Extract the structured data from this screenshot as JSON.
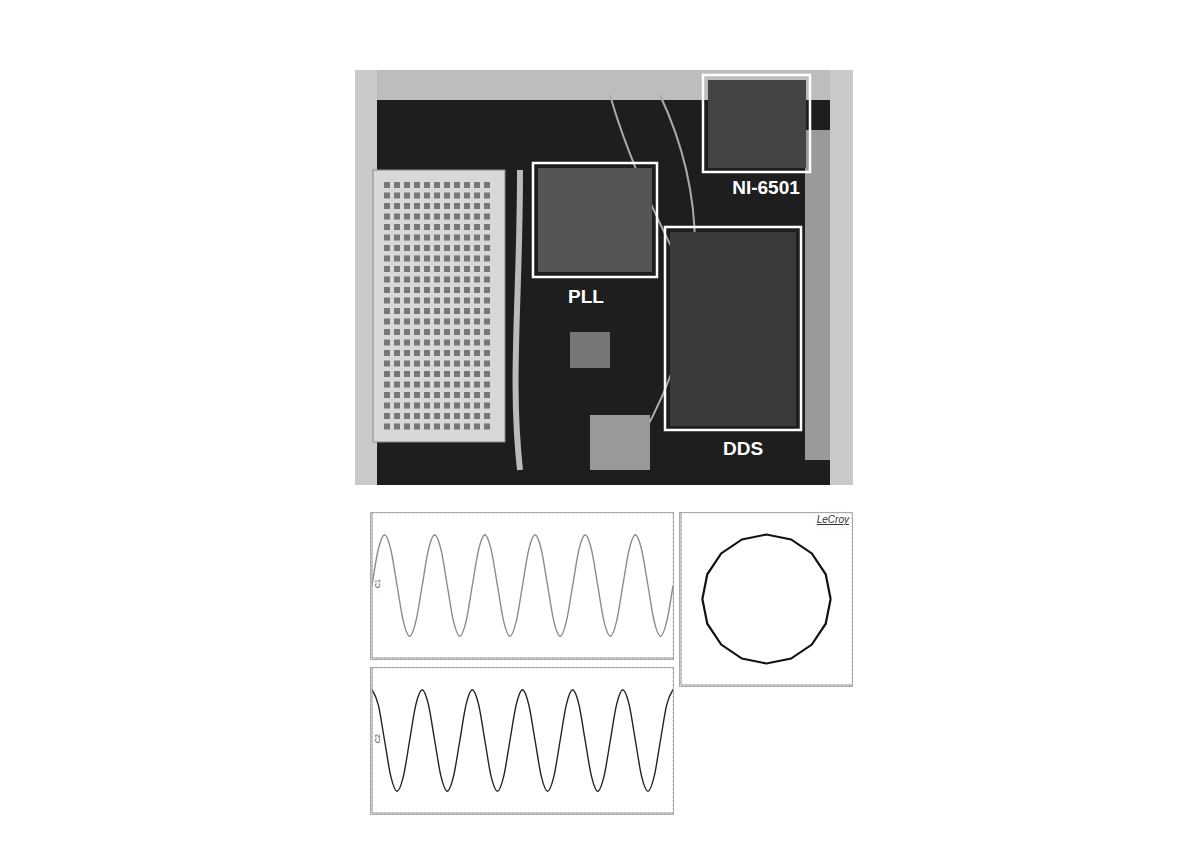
{
  "photo": {
    "labels": [
      "PLL",
      "NI-6501",
      "DDS"
    ]
  },
  "chart_data": [
    {
      "type": "line",
      "x": [
        0,
        0.083,
        0.167,
        0.25,
        0.333,
        0.417,
        0.5,
        0.583,
        0.667,
        0.75,
        0.833,
        0.917,
        1,
        1.083,
        1.167,
        1.25,
        1.333,
        1.417,
        1.5,
        1.583,
        1.667,
        1.75,
        1.833,
        1.917,
        2,
        2.083,
        2.167,
        2.25,
        2.333,
        2.417,
        2.5,
        2.583,
        2.667,
        2.75,
        2.833,
        2.917,
        3,
        3.083,
        3.167,
        3.25,
        3.333,
        3.417,
        3.5,
        3.583,
        3.667,
        3.75,
        3.833,
        3.917,
        4
      ],
      "series": [
        {
          "name": "C1",
          "color": "#8a8a8a",
          "values": [
            0,
            0.99,
            1.4,
            0.99,
            0,
            -0.99,
            -1.4,
            -0.99,
            0,
            0.99,
            1.4,
            0.99,
            0,
            -0.99,
            -1.4,
            -0.99,
            0,
            0.99,
            1.4,
            0.99,
            0,
            -0.99,
            -1.4,
            -0.99,
            0,
            0.99,
            1.4,
            0.99,
            0,
            -0.99,
            -1.4,
            -0.99,
            0,
            0.99,
            1.4,
            0.99,
            0,
            -0.99,
            -1.4,
            -0.99,
            0,
            0.99,
            1.4,
            0.99,
            0,
            -0.99,
            -1.4,
            -0.99,
            0
          ]
        }
      ],
      "xlim": [
        0,
        4
      ],
      "xticks": [
        0,
        0.5,
        1,
        1.5,
        2,
        2.5,
        3,
        3.5,
        4
      ],
      "ylim": [
        -2,
        2
      ],
      "yticks": [
        -2,
        -1,
        0,
        1,
        2
      ],
      "grid": true,
      "tick_labels": false,
      "marker": "none"
    },
    {
      "type": "line",
      "x": [
        0,
        0.083,
        0.167,
        0.25,
        0.333,
        0.417,
        0.5,
        0.583,
        0.667,
        0.75,
        0.833,
        0.917,
        1,
        1.083,
        1.167,
        1.25,
        1.333,
        1.417,
        1.5,
        1.583,
        1.667,
        1.75,
        1.833,
        1.917,
        2,
        2.083,
        2.167,
        2.25,
        2.333,
        2.417,
        2.5,
        2.583,
        2.667,
        2.75,
        2.833,
        2.917,
        3,
        3.083,
        3.167,
        3.25,
        3.333,
        3.417,
        3.5,
        3.583,
        3.667,
        3.75,
        3.833,
        3.917,
        4
      ],
      "series": [
        {
          "name": "C2",
          "color": "#222222",
          "values": [
            1.4,
            0.99,
            0,
            -0.99,
            -1.4,
            -0.99,
            0,
            0.99,
            1.4,
            0.99,
            0,
            -0.99,
            -1.4,
            -0.99,
            0,
            0.99,
            1.4,
            0.99,
            0,
            -0.99,
            -1.4,
            -0.99,
            0,
            0.99,
            1.4,
            0.99,
            0,
            -0.99,
            -1.4,
            -0.99,
            0,
            0.99,
            1.4,
            0.99,
            0,
            -0.99,
            -1.4,
            -0.99,
            0,
            0.99,
            1.4,
            0.99,
            0,
            -0.99,
            -1.4,
            -0.99,
            0,
            0.99,
            1.4
          ]
        }
      ],
      "xlim": [
        0,
        4
      ],
      "xticks": [
        0,
        0.5,
        1,
        1.5,
        2,
        2.5,
        3,
        3.5,
        4
      ],
      "ylim": [
        -2,
        2
      ],
      "yticks": [
        -2,
        -1,
        0,
        1,
        2
      ],
      "grid": true,
      "tick_labels": false,
      "marker": "none"
    },
    {
      "type": "scatter",
      "title": "LeCroy",
      "x": [
        3,
        2.77,
        2.12,
        1.15,
        0,
        -1.15,
        -2.12,
        -2.77,
        -3,
        -2.77,
        -2.12,
        -1.15,
        0,
        1.15,
        2.12,
        2.77,
        3
      ],
      "y": [
        0,
        1.15,
        2.12,
        2.77,
        3,
        2.77,
        2.12,
        1.15,
        0,
        -1.15,
        -2.12,
        -2.77,
        -3,
        -2.77,
        -2.12,
        -1.15,
        0
      ],
      "color": "#111111",
      "xlim": [
        -4,
        4
      ],
      "xticks": [
        -4,
        -3,
        -2,
        -1,
        0,
        1,
        2,
        3,
        4
      ],
      "ylim": [
        -4,
        4
      ],
      "yticks": [
        -4,
        -3,
        -2,
        -1,
        0,
        1,
        2,
        3,
        4
      ],
      "grid": true,
      "tick_labels": false,
      "marker": "none",
      "line_style": "solid"
    }
  ]
}
